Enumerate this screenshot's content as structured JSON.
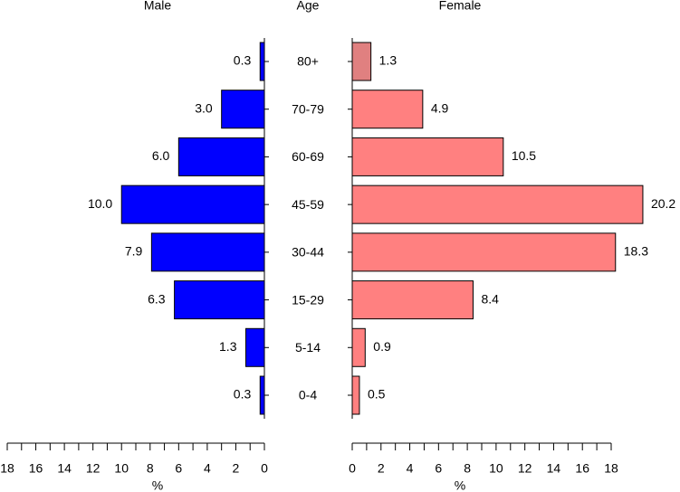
{
  "chart_data": {
    "type": "pyramid",
    "ylabel": "Age",
    "xlabel": "%",
    "categories": [
      "0-4",
      "5-14",
      "15-29",
      "30-44",
      "45-59",
      "60-69",
      "70-79",
      "80+"
    ],
    "series": [
      {
        "name": "Male",
        "color": "#0000ff",
        "values": [
          0.3,
          1.3,
          6.3,
          7.9,
          10.0,
          6.0,
          3.0,
          0.3
        ],
        "value_labels": [
          "0.3",
          "1.3",
          "6.3",
          "7.9",
          "10.0",
          "6.0",
          "3.0",
          "0.3"
        ]
      },
      {
        "name": "Female",
        "color": "#ff8080",
        "colors": [
          "#ff8080",
          "#ff8080",
          "#ff8080",
          "#ff8080",
          "#ff8080",
          "#ff8080",
          "#ff8080",
          "#e08080"
        ],
        "values": [
          0.5,
          0.9,
          8.4,
          18.3,
          20.2,
          10.5,
          4.9,
          1.3
        ]
      }
    ],
    "xlim": [
      0,
      18
    ],
    "xticks": [
      0,
      2,
      4,
      6,
      8,
      10,
      12,
      14,
      16,
      18
    ],
    "xminorticks": [
      1,
      3,
      5,
      7,
      9,
      11,
      13,
      15,
      17
    ]
  }
}
